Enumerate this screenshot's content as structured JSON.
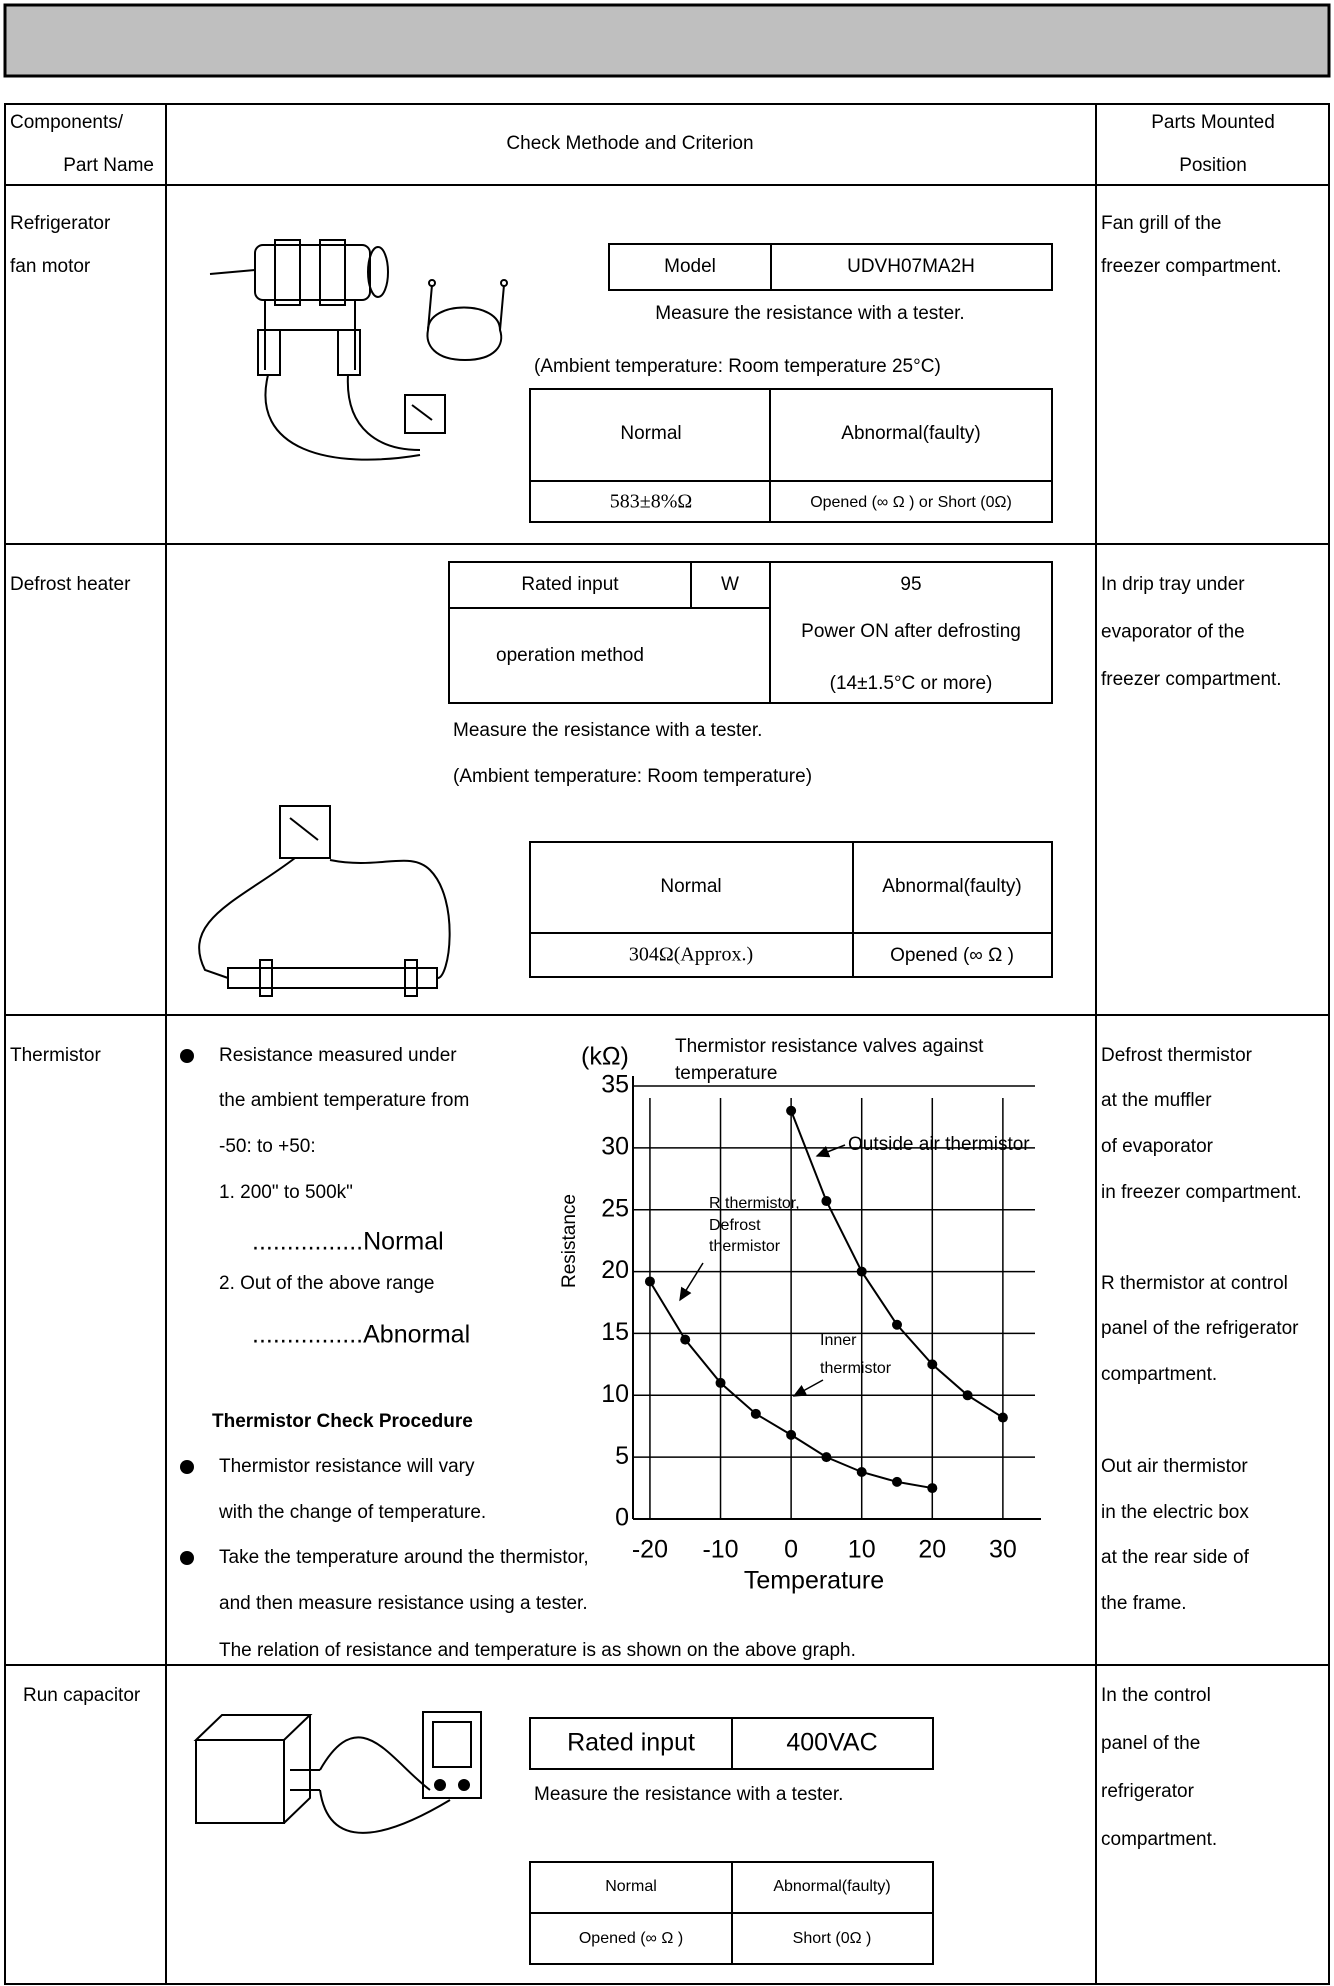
{
  "header": {
    "components": "Components/",
    "part_name": "Part Name",
    "method": "Check Methode and Criterion",
    "parts_mounted": "Parts Mounted",
    "position": "Position"
  },
  "fan_motor": {
    "name": [
      "Refrigerator",
      "fan motor"
    ],
    "model_label": "Model",
    "model": "UDVH07MA2H",
    "instruction": "Measure the resistance with a tester.",
    "ambient": "(Ambient temperature: Room temperature  25°C)",
    "normal_label": "Normal",
    "abnormal_label": "Abnormal(faulty)",
    "normal_value": "583±8%Ω",
    "abnormal_value": "Opened (∞ Ω ) or Short (0Ω)",
    "position": [
      "Fan grill of the",
      " freezer compartment."
    ]
  },
  "defrost_heater": {
    "name": "Defrost heater",
    "rated_label": "Rated input",
    "unit": "W",
    "rated": 95,
    "operation_label": "operation method",
    "operation": [
      "Power ON after defrosting",
      "(14±1.5°C or more)"
    ],
    "instruction": "Measure the resistance with a tester.",
    "ambient": "(Ambient temperature: Room temperature)",
    "normal_label": "Normal",
    "abnormal_label": "Abnormal(faulty)",
    "normal_value": "304Ω(Approx.)",
    "abnormal_value": "Opened (∞  Ω )",
    "position": [
      "In drip tray under",
      "evaporator of the",
      "freezer compartment."
    ]
  },
  "thermistor": {
    "name": "Thermistor",
    "criteria": [
      "Resistance measured under",
      "the ambient temperature from",
      "-50: to +50:",
      "1. 200\" to 500k\"",
      "................Normal",
      "2. Out of the above range",
      "................Abnormal"
    ],
    "check_title": "Thermistor Check Procedure",
    "procedure": [
      "Thermistor resistance will vary",
      "with the change of temperature.",
      "Take the temperature around the thermistor,",
      "and then measure resistance using a tester.",
      "The relation of resistance and temperature is as shown on the above graph."
    ],
    "graph": {
      "unit": "(kΩ)",
      "title": [
        "Thermistor resistance valves against",
        "temperature"
      ],
      "y_label": "Resistance",
      "x_label": "Temperature",
      "xlim": [
        -22.4,
        35.4
      ],
      "ylim": [
        0,
        35
      ],
      "xticks": [
        -20,
        -10,
        0,
        10,
        20,
        30
      ],
      "yticks": [
        0,
        5,
        10,
        15,
        20,
        25,
        30,
        35
      ],
      "series": [
        {
          "color": "#000000",
          "x": [
            0,
            5,
            10,
            15,
            20,
            25,
            30
          ],
          "values": [
            33,
            25.7,
            20,
            15.7,
            12.5,
            10,
            8.2
          ]
        },
        {
          "color": "#000000",
          "x": [
            -20,
            -15,
            -10,
            -5,
            0,
            5,
            10,
            15,
            20
          ],
          "values": [
            19.2,
            14.5,
            11,
            8.5,
            6.8,
            5,
            3.8,
            3,
            2.5
          ]
        }
      ],
      "annotations": [
        [
          "Outside air thermistor"
        ],
        [
          "R thermistor,",
          "Defrost",
          "thermistor"
        ],
        [
          "Inner",
          "thermistor"
        ]
      ]
    },
    "position": [
      "Defrost thermistor",
      "at the muffler",
      "of evaporator",
      "in freezer compartment.",
      "R thermistor at control",
      "panel of the refrigerator",
      "compartment.",
      "Out air thermistor",
      "in the electric box",
      " at the rear side of",
      "the frame."
    ]
  },
  "run_capacitor": {
    "name": "Run capacitor",
    "rated_label": "Rated input",
    "rated": "400VAC",
    "instruction": "Measure the resistance with a tester.",
    "normal_label": "Normal",
    "abnormal_label": "Abnormal(faulty)",
    "normal_value": "Opened (∞ Ω )",
    "abnormal_value": "Short (0Ω )",
    "position": [
      "In the control",
      "panel of the",
      "refrigerator",
      "compartment."
    ]
  }
}
